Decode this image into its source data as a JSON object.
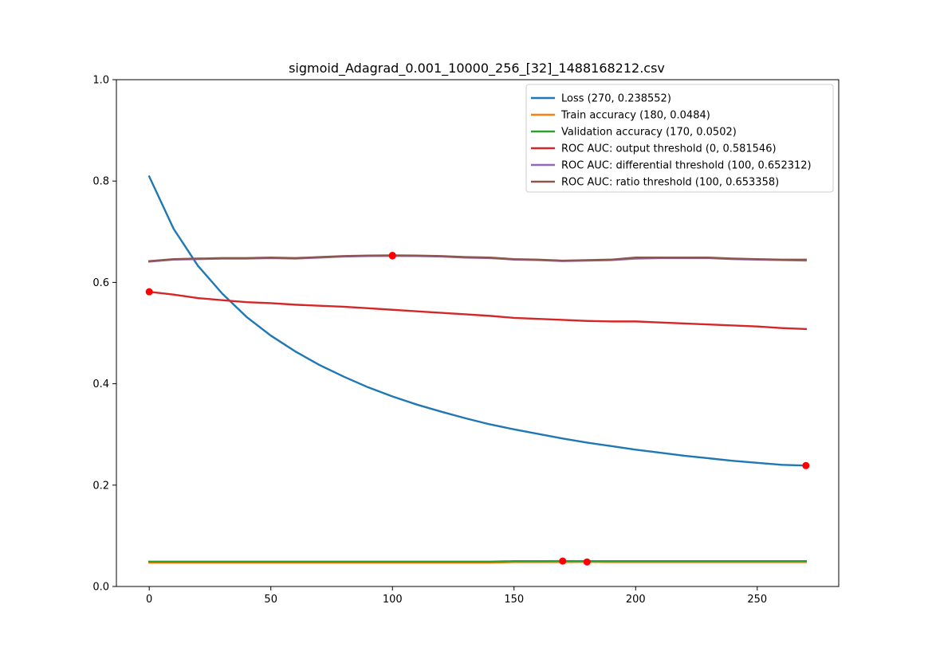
{
  "chart_data": {
    "type": "line",
    "title": "sigmoid_Adagrad_0.001_10000_256_[32]_1488168212.csv",
    "xlabel": "",
    "ylabel": "",
    "xlim": [
      -13.5,
      283.5
    ],
    "ylim": [
      0.0,
      1.0
    ],
    "x_ticks": [
      0,
      50,
      100,
      150,
      200,
      250
    ],
    "y_ticks": [
      0.0,
      0.2,
      0.4,
      0.6,
      0.8,
      1.0
    ],
    "x_tick_labels": [
      "0",
      "50",
      "100",
      "150",
      "200",
      "250"
    ],
    "y_tick_labels": [
      "0.0",
      "0.2",
      "0.4",
      "0.6",
      "0.8",
      "1.0"
    ],
    "grid": false,
    "legend_position": "top-right",
    "x": [
      0,
      10,
      20,
      30,
      40,
      50,
      60,
      70,
      80,
      90,
      100,
      110,
      120,
      130,
      140,
      150,
      160,
      170,
      180,
      190,
      200,
      210,
      220,
      230,
      240,
      250,
      260,
      270
    ],
    "series": [
      {
        "name": "Loss (270, 0.238552)",
        "color": "#1f77b4",
        "values": [
          0.809,
          0.706,
          0.633,
          0.578,
          0.532,
          0.495,
          0.464,
          0.437,
          0.414,
          0.393,
          0.375,
          0.359,
          0.345,
          0.332,
          0.32,
          0.31,
          0.301,
          0.292,
          0.284,
          0.277,
          0.27,
          0.264,
          0.258,
          0.253,
          0.248,
          0.244,
          0.24,
          0.2386
        ],
        "best": {
          "x": 270,
          "y": 0.238552
        }
      },
      {
        "name": "Train accuracy (180, 0.0484)",
        "color": "#ff7f0e",
        "values": [
          0.047,
          0.047,
          0.047,
          0.047,
          0.047,
          0.047,
          0.047,
          0.047,
          0.047,
          0.047,
          0.047,
          0.047,
          0.047,
          0.047,
          0.047,
          0.048,
          0.048,
          0.048,
          0.0484,
          0.048,
          0.048,
          0.048,
          0.048,
          0.048,
          0.048,
          0.048,
          0.048,
          0.048
        ],
        "best": {
          "x": 180,
          "y": 0.0484
        }
      },
      {
        "name": "Validation accuracy (170, 0.0502)",
        "color": "#2ca02c",
        "values": [
          0.049,
          0.049,
          0.049,
          0.049,
          0.049,
          0.049,
          0.049,
          0.049,
          0.049,
          0.049,
          0.049,
          0.049,
          0.049,
          0.049,
          0.049,
          0.05,
          0.05,
          0.0502,
          0.05,
          0.05,
          0.05,
          0.05,
          0.05,
          0.05,
          0.05,
          0.05,
          0.05,
          0.05
        ],
        "best": {
          "x": 170,
          "y": 0.0502
        }
      },
      {
        "name": "ROC AUC: output threshold (0, 0.581546)",
        "color": "#d62728",
        "values": [
          0.5815,
          0.576,
          0.569,
          0.565,
          0.561,
          0.559,
          0.556,
          0.554,
          0.552,
          0.549,
          0.546,
          0.543,
          0.54,
          0.537,
          0.534,
          0.53,
          0.528,
          0.526,
          0.524,
          0.523,
          0.523,
          0.521,
          0.519,
          0.517,
          0.515,
          0.513,
          0.51,
          0.508
        ],
        "best": {
          "x": 0,
          "y": 0.581546
        }
      },
      {
        "name": "ROC AUC: differential threshold (100, 0.652312)",
        "color": "#9467bd",
        "values": [
          0.641,
          0.645,
          0.646,
          0.647,
          0.647,
          0.648,
          0.647,
          0.649,
          0.651,
          0.652,
          0.6523,
          0.652,
          0.651,
          0.649,
          0.648,
          0.645,
          0.644,
          0.642,
          0.643,
          0.644,
          0.647,
          0.648,
          0.648,
          0.648,
          0.646,
          0.645,
          0.644,
          0.643
        ],
        "best": {
          "x": 100,
          "y": 0.652312
        }
      },
      {
        "name": "ROC AUC: ratio threshold (100, 0.653358)",
        "color": "#8c564b",
        "values": [
          0.642,
          0.646,
          0.647,
          0.648,
          0.648,
          0.649,
          0.648,
          0.65,
          0.652,
          0.653,
          0.6534,
          0.653,
          0.652,
          0.65,
          0.649,
          0.646,
          0.645,
          0.643,
          0.644,
          0.645,
          0.649,
          0.649,
          0.649,
          0.649,
          0.647,
          0.646,
          0.645,
          0.645
        ],
        "best": {
          "x": 100,
          "y": 0.653358
        }
      }
    ],
    "marker_color": "#ff0000"
  }
}
